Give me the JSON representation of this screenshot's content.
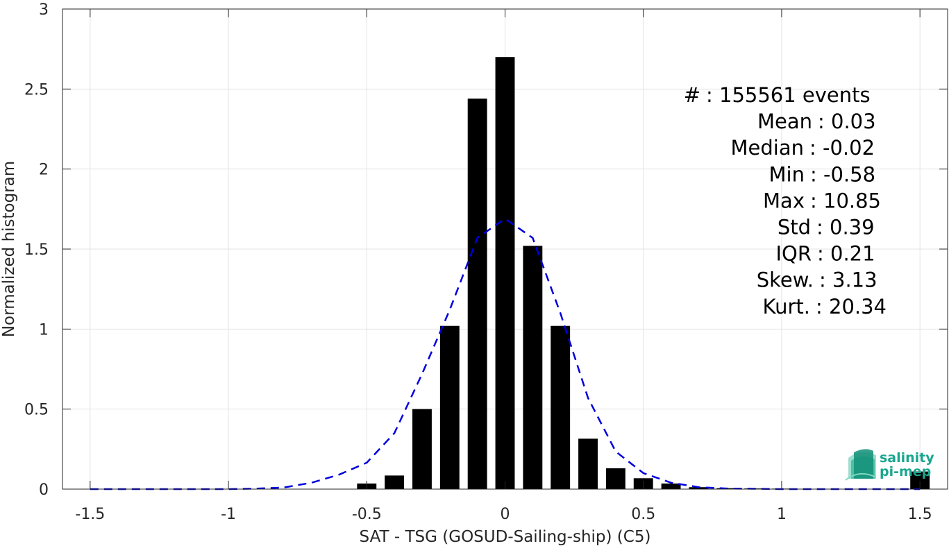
{
  "chart_data": {
    "type": "bar",
    "xlabel": "SAT - TSG (GOSUD-Sailing-ship) (C5)",
    "ylabel": "Normalized histogram",
    "xlim": [
      -1.6,
      1.6
    ],
    "ylim": [
      0,
      3
    ],
    "xticks": [
      -1.5,
      -1,
      -0.5,
      0,
      0.5,
      1,
      1.5
    ],
    "xtick_labels": [
      "-1.5",
      "-1",
      "-0.5",
      "0",
      "0.5",
      "1",
      "1.5"
    ],
    "yticks": [
      0,
      0.5,
      1,
      1.5,
      2,
      2.5,
      3
    ],
    "ytick_labels": [
      "0",
      "0.5",
      "1",
      "1.5",
      "2",
      "2.5",
      "3"
    ],
    "grid": true,
    "bar_width": 0.07,
    "bars": {
      "x": [
        -1.5,
        -1.4,
        -1.3,
        -1.2,
        -1.1,
        -1.0,
        -0.9,
        -0.8,
        -0.7,
        -0.6,
        -0.5,
        -0.4,
        -0.3,
        -0.2,
        -0.1,
        0.0,
        0.1,
        0.2,
        0.3,
        0.4,
        0.5,
        0.6,
        0.7,
        0.8,
        0.9,
        1.0,
        1.1,
        1.2,
        1.3,
        1.4,
        1.5
      ],
      "values": [
        0,
        0,
        0,
        0,
        0,
        0,
        0,
        0,
        0,
        0,
        0.035,
        0.085,
        0.5,
        1.02,
        2.44,
        2.7,
        1.52,
        1.02,
        0.315,
        0.13,
        0.068,
        0.035,
        0.012,
        0.006,
        0.004,
        0.003,
        0.002,
        0.001,
        0,
        0,
        0.11
      ],
      "color": "#000000"
    },
    "fit_curve": {
      "style": "dashed",
      "color": "#0000dd",
      "x": [
        -1.5,
        -1.4,
        -1.3,
        -1.2,
        -1.1,
        -1.0,
        -0.9,
        -0.8,
        -0.7,
        -0.6,
        -0.5,
        -0.4,
        -0.3,
        -0.2,
        -0.1,
        0.0,
        0.1,
        0.2,
        0.3,
        0.4,
        0.5,
        0.6,
        0.7,
        0.8,
        0.9,
        1.0,
        1.1,
        1.2,
        1.3,
        1.4,
        1.5
      ],
      "values": [
        0,
        0,
        0,
        0,
        0,
        0,
        0.003,
        0.01,
        0.04,
        0.09,
        0.165,
        0.35,
        0.72,
        1.12,
        1.57,
        1.69,
        1.57,
        1.1,
        0.57,
        0.235,
        0.1,
        0.04,
        0.012,
        0.004,
        0.002,
        0,
        0,
        0,
        0,
        0,
        0
      ]
    },
    "stats": [
      {
        "label": "#  ",
        "value": ": 155561 events"
      },
      {
        "label": "Mean",
        "value": ": 0.03"
      },
      {
        "label": "Median",
        "value": ": -0.02"
      },
      {
        "label": "Min",
        "value": ": -0.58"
      },
      {
        "label": "Max",
        "value": ": 10.85"
      },
      {
        "label": "Std",
        "value": ": 0.39"
      },
      {
        "label": "IQR",
        "value": ": 0.21"
      },
      {
        "label": "Skew.",
        "value": ": 3.13"
      },
      {
        "label": "Kurt.",
        "value": ": 20.34"
      }
    ]
  },
  "logo": {
    "line1": "salinity",
    "line2": "pi-mep",
    "color": "#1aa68e",
    "icon": "salinity-wave-icon"
  }
}
